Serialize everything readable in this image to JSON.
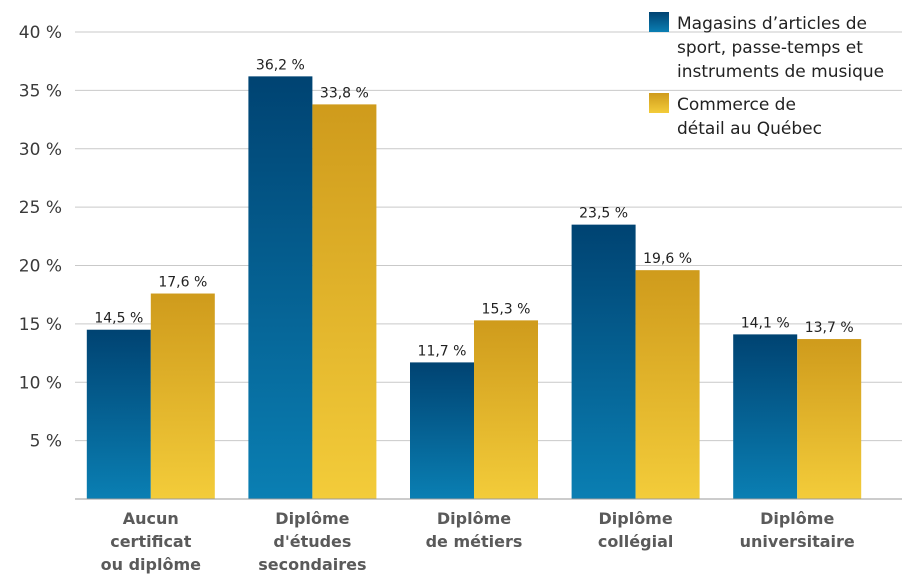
{
  "chart_data": {
    "type": "bar",
    "title": "",
    "xlabel": "",
    "ylabel": "",
    "ylim": [
      0,
      40
    ],
    "yticks": [
      "5 %",
      "10 %",
      "15 %",
      "20 %",
      "25 %",
      "30 %",
      "35 %",
      "40 %"
    ],
    "ytick_values": [
      5,
      10,
      15,
      20,
      25,
      30,
      35,
      40
    ],
    "grid": true,
    "legend_position": "top-right",
    "categories": [
      [
        "Aucun",
        "certificat",
        "ou diplôme"
      ],
      [
        "Diplôme",
        "d'études",
        "secondaires"
      ],
      [
        "Diplôme",
        "de métiers"
      ],
      [
        "Diplôme",
        "collégial"
      ],
      [
        "Diplôme",
        "universitaire"
      ]
    ],
    "series": [
      {
        "name": [
          "Magasins d’articles de",
          "sport, passe-temps et",
          "instruments de musique"
        ],
        "values": [
          14.5,
          36.2,
          11.7,
          23.5,
          14.1
        ],
        "labels": [
          "14,5 %",
          "36,2 %",
          "11,7 %",
          "23,5 %",
          "14,1 %"
        ],
        "color_top": "#004372",
        "color_bottom": "#0a7fb3"
      },
      {
        "name": [
          "Commerce de",
          "détail au Québec"
        ],
        "values": [
          17.6,
          33.8,
          15.3,
          19.6,
          13.7
        ],
        "labels": [
          "17,6 %",
          "33,8 %",
          "15,3 %",
          "19,6 %",
          "13,7 %"
        ],
        "color_top": "#cf9b1c",
        "color_bottom": "#f3cc3a"
      }
    ]
  }
}
